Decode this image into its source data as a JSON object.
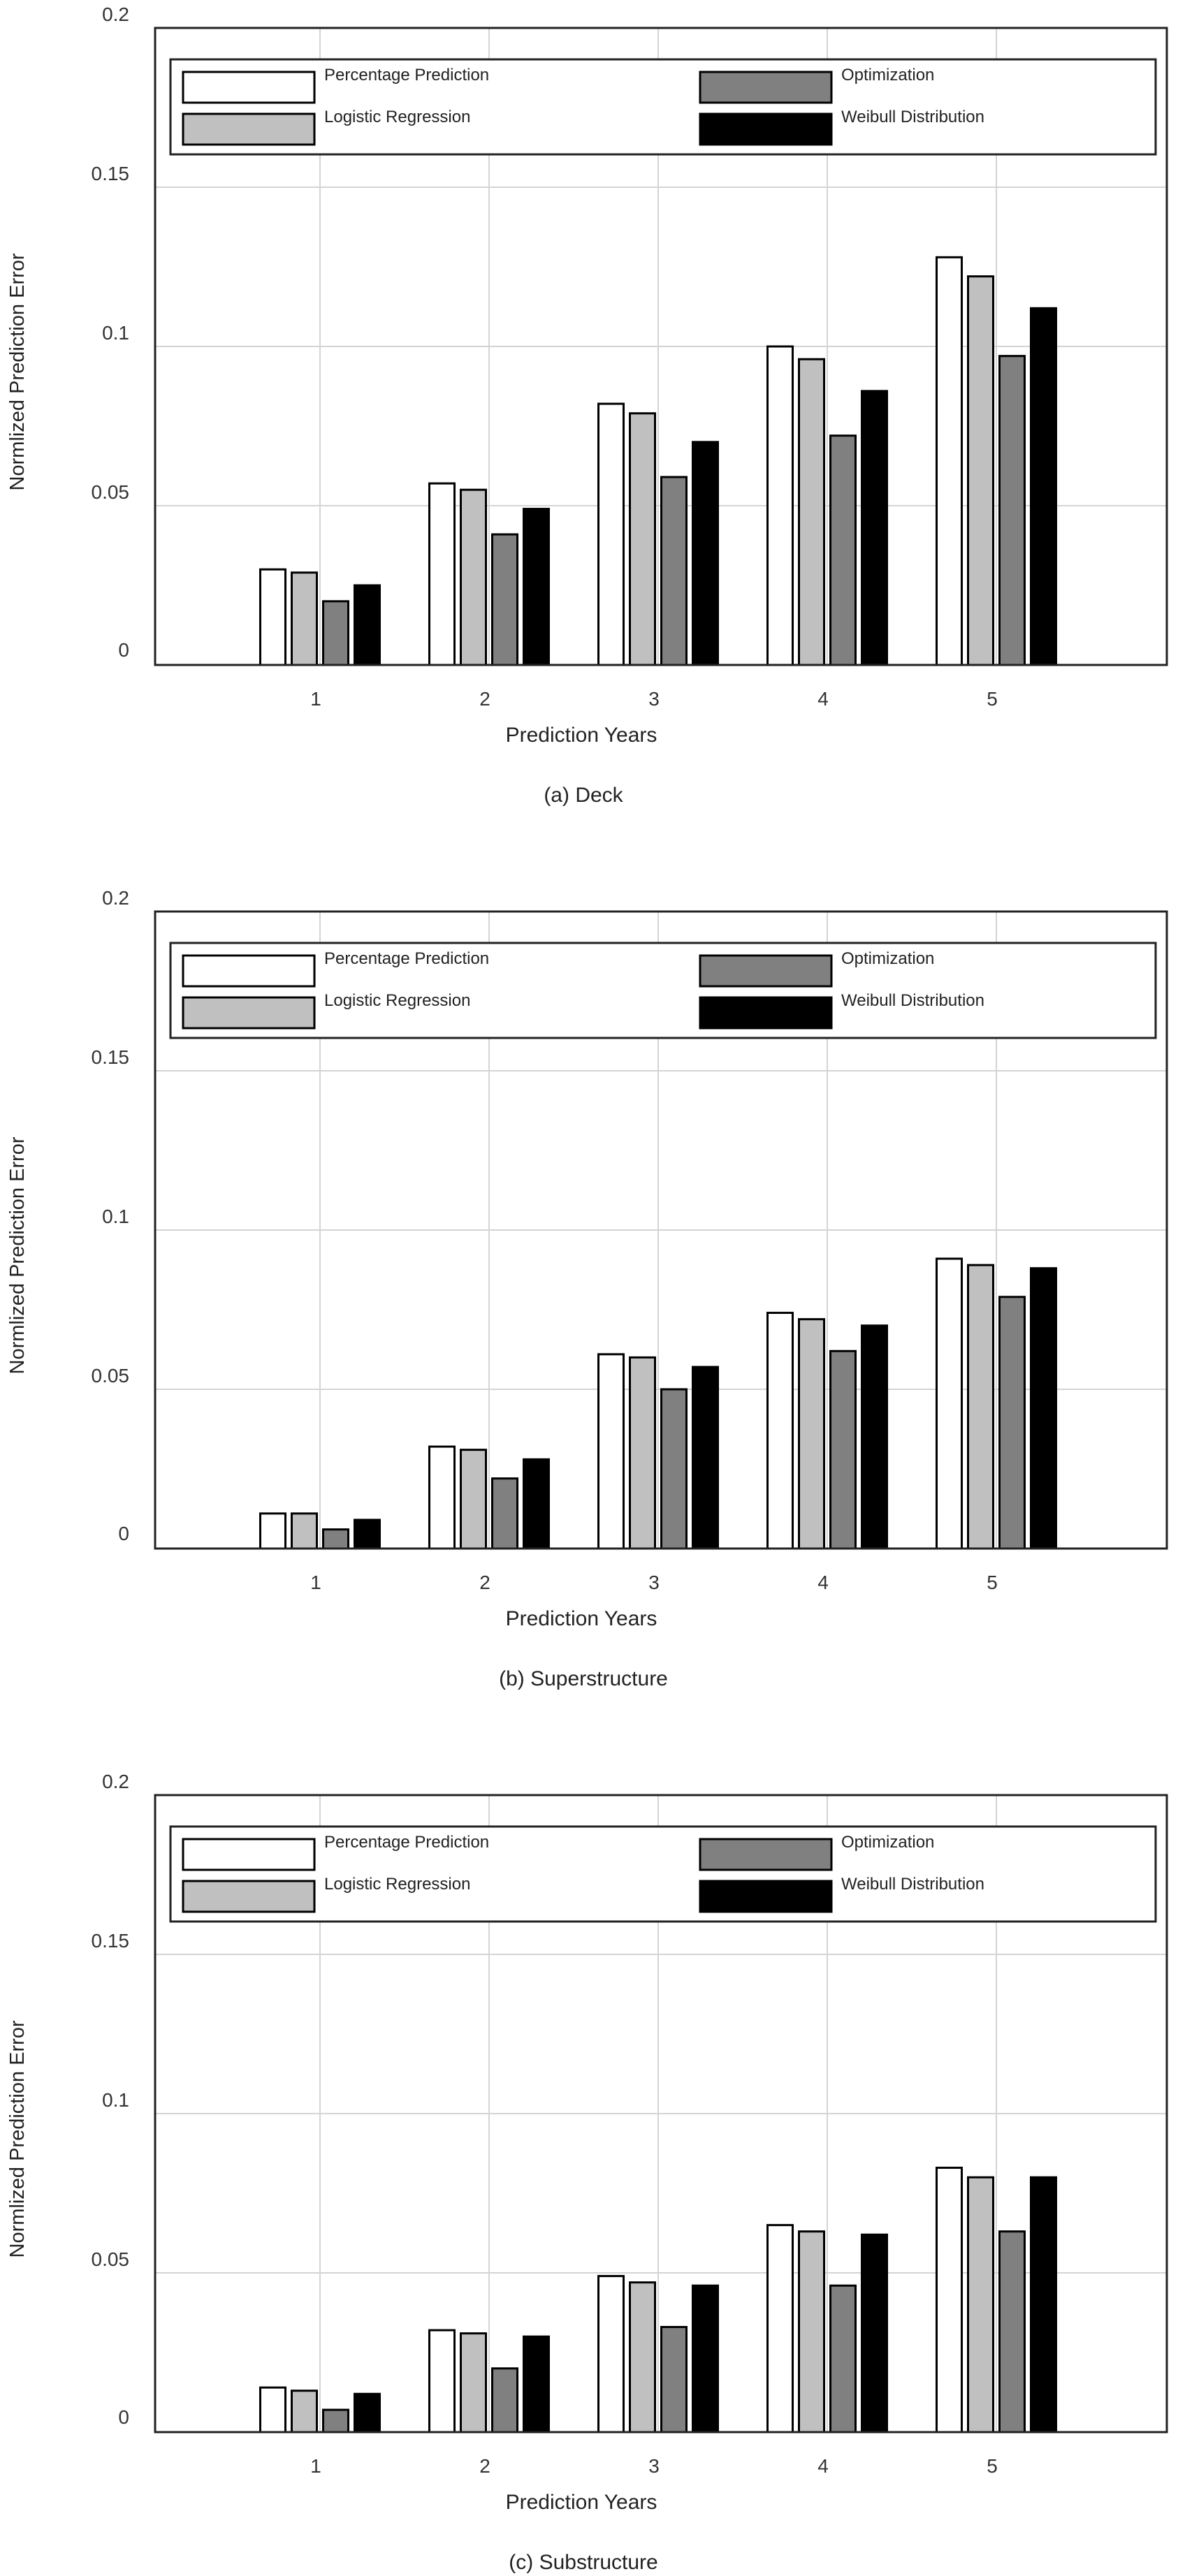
{
  "chart_data": [
    {
      "type": "bar",
      "caption": "(a) Deck",
      "xlabel": "Prediction Years",
      "ylabel": "Normlized Prediction Error",
      "categories": [
        "1",
        "2",
        "3",
        "4",
        "5"
      ],
      "yticks": [
        "0",
        "0.05",
        "0.1",
        "0.15",
        "0.2"
      ],
      "ylim": [
        0,
        0.2
      ],
      "grid": true,
      "legend_position": "top",
      "series": [
        {
          "name": "Percentage Prediction",
          "color": "#ffffff",
          "values": [
            0.03,
            0.057,
            0.082,
            0.1,
            0.128
          ]
        },
        {
          "name": "Logistic Regression",
          "color": "#c0c0c0",
          "values": [
            0.029,
            0.055,
            0.079,
            0.096,
            0.122
          ]
        },
        {
          "name": "Optimization",
          "color": "#808080",
          "values": [
            0.02,
            0.041,
            0.059,
            0.072,
            0.097
          ]
        },
        {
          "name": "Weibull Distribution",
          "color": "#000000",
          "values": [
            0.025,
            0.049,
            0.07,
            0.086,
            0.112
          ]
        }
      ]
    },
    {
      "type": "bar",
      "caption": "(b) Superstructure",
      "xlabel": "Prediction Years",
      "ylabel": "Normlized Prediction Error",
      "categories": [
        "1",
        "2",
        "3",
        "4",
        "5"
      ],
      "yticks": [
        "0",
        "0.05",
        "0.1",
        "0.15",
        "0.2"
      ],
      "ylim": [
        0,
        0.2
      ],
      "grid": true,
      "legend_position": "top",
      "series": [
        {
          "name": "Percentage Prediction",
          "color": "#ffffff",
          "values": [
            0.011,
            0.032,
            0.061,
            0.074,
            0.091
          ]
        },
        {
          "name": "Logistic Regression",
          "color": "#c0c0c0",
          "values": [
            0.011,
            0.031,
            0.06,
            0.072,
            0.089
          ]
        },
        {
          "name": "Optimization",
          "color": "#808080",
          "values": [
            0.006,
            0.022,
            0.05,
            0.062,
            0.079
          ]
        },
        {
          "name": "Weibull Distribution",
          "color": "#000000",
          "values": [
            0.009,
            0.028,
            0.057,
            0.07,
            0.088
          ]
        }
      ]
    },
    {
      "type": "bar",
      "caption": "(c) Substructure",
      "xlabel": "Prediction Years",
      "ylabel": "Normlized Prediction Error",
      "categories": [
        "1",
        "2",
        "3",
        "4",
        "5"
      ],
      "yticks": [
        "0",
        "0.05",
        "0.1",
        "0.15",
        "0.2"
      ],
      "ylim": [
        0,
        0.2
      ],
      "grid": true,
      "legend_position": "top",
      "series": [
        {
          "name": "Percentage Prediction",
          "color": "#ffffff",
          "values": [
            0.014,
            0.032,
            0.049,
            0.065,
            0.083
          ]
        },
        {
          "name": "Logistic Regression",
          "color": "#c0c0c0",
          "values": [
            0.013,
            0.031,
            0.047,
            0.063,
            0.08
          ]
        },
        {
          "name": "Optimization",
          "color": "#808080",
          "values": [
            0.007,
            0.02,
            0.033,
            0.046,
            0.063
          ]
        },
        {
          "name": "Weibull Distribution",
          "color": "#000000",
          "values": [
            0.012,
            0.03,
            0.046,
            0.062,
            0.08
          ]
        }
      ]
    }
  ]
}
